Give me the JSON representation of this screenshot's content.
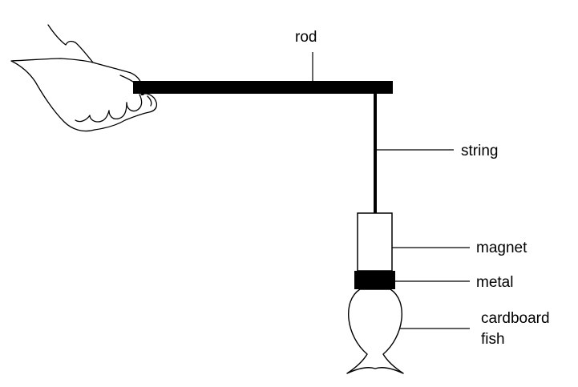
{
  "labels": {
    "rod": "rod",
    "string": "string",
    "magnet": "magnet",
    "metal": "metal",
    "cardboard_line1": "cardboard",
    "cardboard_line2": "fish"
  },
  "colors": {
    "ink": "#000000",
    "background": "#ffffff"
  },
  "icons": {
    "hand": "hand-holding-rod-icon"
  }
}
